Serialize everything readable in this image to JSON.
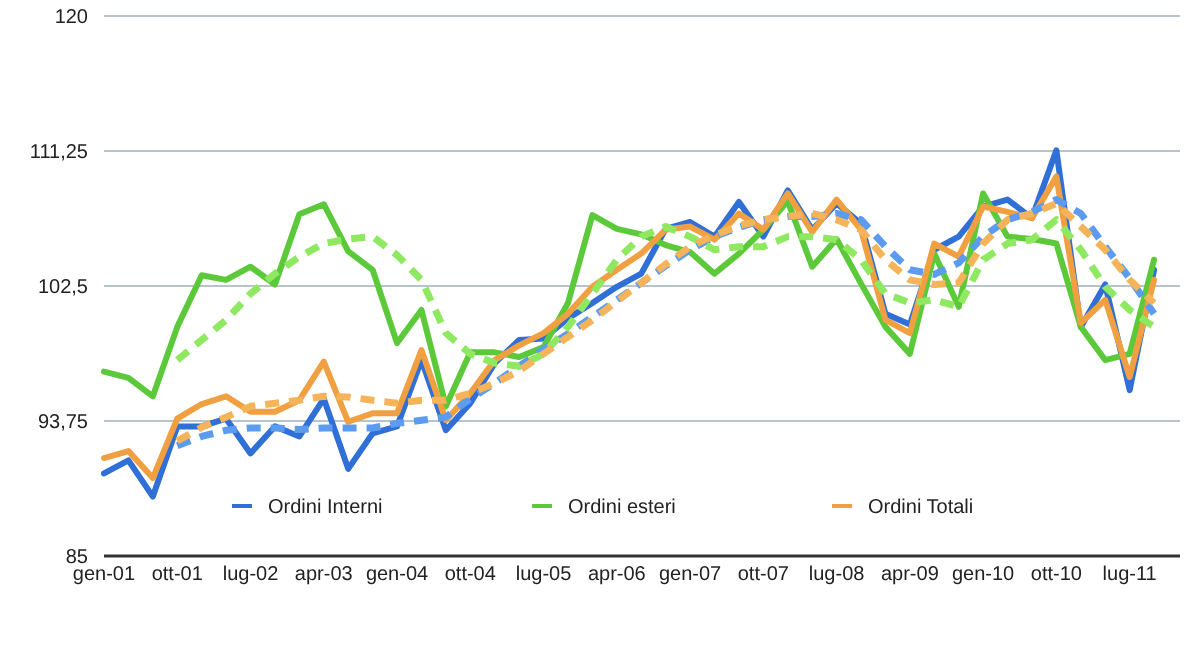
{
  "chart_data": {
    "type": "line",
    "categories": [
      "gen-01",
      null,
      null,
      "ott-01",
      null,
      null,
      "lug-02",
      null,
      null,
      "apr-03",
      null,
      null,
      "gen-04",
      null,
      null,
      "ott-04",
      null,
      null,
      "lug-05",
      null,
      null,
      "apr-06",
      null,
      null,
      "gen-07",
      null,
      null,
      "ott-07",
      null,
      null,
      "lug-08",
      null,
      null,
      "apr-09",
      null,
      null,
      "gen-10",
      null,
      null,
      "ott-10",
      null,
      null,
      "lug-11",
      null
    ],
    "ylim": [
      85,
      120
    ],
    "yticks": [
      85,
      {
        "value": 93.75,
        "label": "93,75"
      },
      {
        "value": 102.5,
        "label": "102,5"
      },
      {
        "value": 111.25,
        "label": "111,25"
      },
      120
    ],
    "grid": "y",
    "legend": "bottom",
    "series": [
      {
        "name": "Ordini Interni",
        "color": "#2f6fd6",
        "values": [
          90.35,
          91.2,
          88.85,
          93.4,
          93.4,
          93.9,
          91.65,
          93.4,
          92.75,
          95.2,
          90.65,
          92.95,
          93.4,
          97.7,
          93.15,
          94.9,
          97.5,
          99.0,
          99.1,
          100.4,
          101.4,
          102.45,
          103.3,
          106.2,
          106.65,
          105.7,
          107.95,
          105.7,
          108.7,
          106.15,
          107.85,
          106.55,
          100.7,
          100.0,
          104.85,
          105.7,
          107.65,
          108.1,
          106.9,
          111.3,
          99.85,
          102.6,
          95.75,
          103.55
        ]
      },
      {
        "name": "Ordini esteri",
        "color": "#5cc93a",
        "values": [
          96.95,
          96.55,
          95.35,
          99.85,
          103.2,
          102.9,
          103.75,
          102.6,
          107.15,
          107.8,
          104.75,
          103.55,
          98.8,
          100.95,
          94.7,
          98.2,
          98.2,
          97.9,
          98.55,
          101.4,
          107.1,
          106.2,
          105.85,
          105.15,
          104.7,
          103.3,
          104.6,
          106.15,
          108.0,
          103.75,
          105.55,
          102.65,
          99.85,
          98.1,
          104.6,
          101.15,
          108.5,
          105.7,
          105.55,
          105.25,
          99.85,
          97.7,
          98.1,
          104.2
        ]
      },
      {
        "name": "Ordini Totali",
        "color": "#f0a040",
        "values": [
          91.35,
          91.8,
          90.05,
          93.9,
          94.85,
          95.35,
          94.35,
          94.35,
          95.1,
          97.6,
          93.7,
          94.25,
          94.25,
          98.35,
          93.8,
          95.55,
          97.7,
          98.65,
          99.45,
          100.7,
          102.45,
          103.55,
          104.6,
          106.15,
          106.35,
          105.5,
          107.2,
          106.15,
          108.5,
          106.0,
          108.1,
          106.15,
          100.3,
          99.45,
          105.25,
          104.4,
          107.65,
          107.3,
          106.9,
          109.6,
          100.1,
          101.6,
          96.6,
          102.9
        ]
      },
      {
        "type": "line",
        "line_style": "dashed",
        "color": "#5b9cf0",
        "values": [
          null,
          null,
          null,
          92.15,
          92.75,
          93.15,
          93.3,
          93.3,
          93.2,
          93.3,
          93.3,
          93.3,
          93.6,
          93.8,
          94.0,
          95.2,
          96.2,
          97.3,
          98.4,
          99.4,
          100.5,
          101.6,
          102.7,
          103.8,
          104.85,
          105.7,
          106.3,
          106.8,
          107.0,
          107.0,
          107.2,
          106.8,
          105.05,
          103.55,
          103.25,
          104.0,
          105.7,
          106.8,
          107.3,
          108.1,
          107.2,
          105.05,
          103.0,
          100.7
        ]
      },
      {
        "type": "line",
        "line_style": "dashed",
        "color": "#8ee860",
        "values": [
          null,
          null,
          null,
          97.7,
          99.0,
          100.3,
          102.0,
          103.3,
          104.4,
          105.25,
          105.55,
          105.7,
          104.5,
          102.9,
          99.45,
          98.1,
          97.5,
          97.3,
          98.1,
          99.85,
          102.0,
          104.2,
          105.7,
          106.35,
          105.7,
          104.85,
          105.05,
          105.05,
          105.7,
          105.7,
          105.5,
          104.2,
          102.0,
          101.4,
          101.6,
          101.15,
          104.2,
          105.25,
          105.5,
          106.8,
          104.85,
          102.45,
          100.95,
          99.85
        ]
      },
      {
        "type": "line",
        "line_style": "dashed",
        "color": "#f5b45a",
        "values": [
          null,
          null,
          null,
          92.45,
          93.35,
          94.0,
          94.7,
          94.9,
          95.1,
          95.35,
          95.3,
          95.1,
          94.9,
          95.1,
          95.1,
          95.55,
          96.2,
          97.0,
          98.1,
          99.2,
          100.3,
          101.5,
          102.7,
          103.9,
          105.05,
          105.8,
          106.4,
          106.8,
          107.0,
          107.2,
          106.8,
          106.15,
          104.2,
          102.9,
          102.6,
          102.7,
          105.25,
          106.8,
          107.2,
          107.85,
          106.35,
          104.85,
          102.9,
          101.4
        ]
      }
    ]
  }
}
